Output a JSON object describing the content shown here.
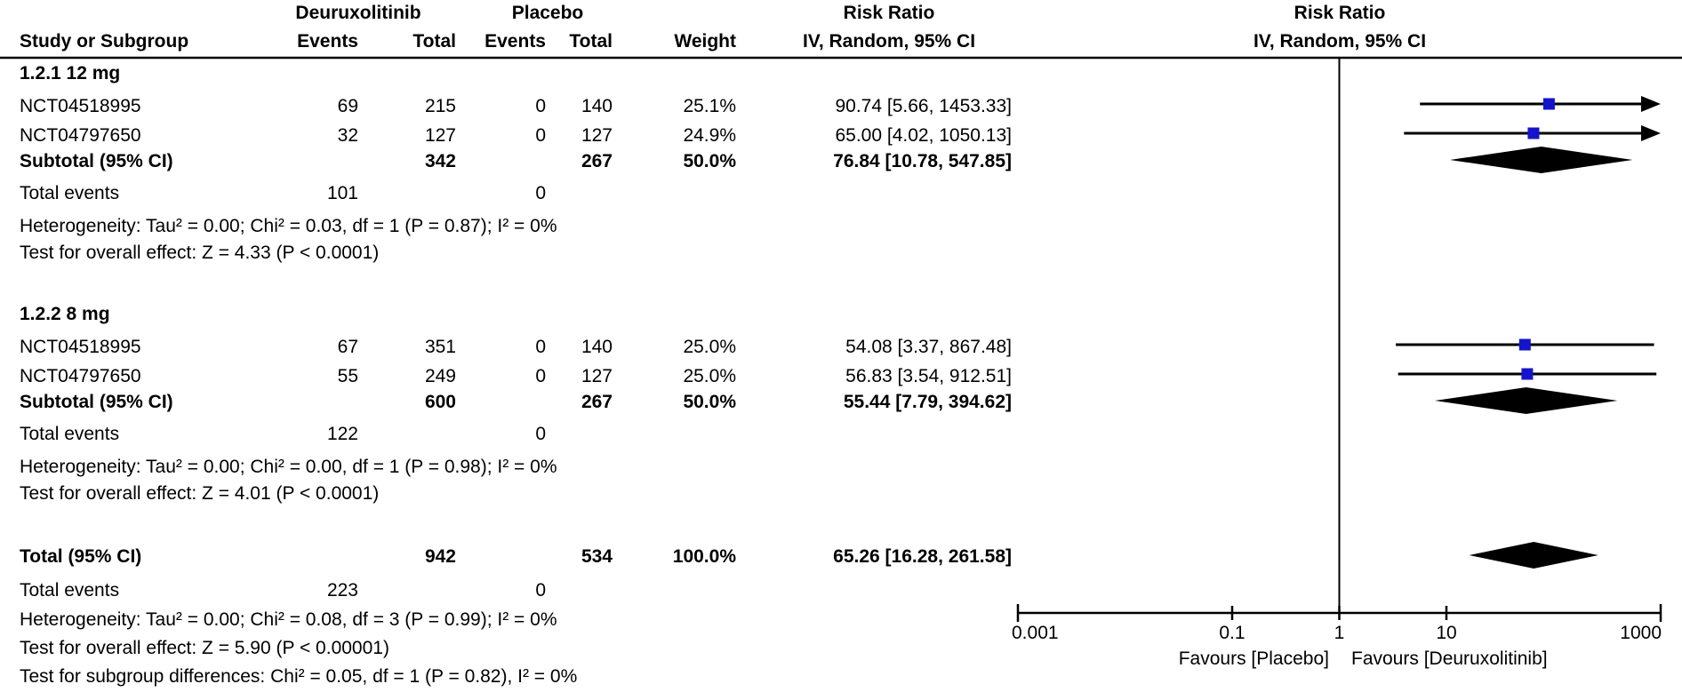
{
  "title_headers": {
    "group1": "Deuruxolitinib",
    "group2": "Placebo",
    "study_col": "Study or Subgroup",
    "events_col": "Events",
    "total_col": "Total",
    "weight_col": "Weight",
    "effect_col_line1": "Risk Ratio",
    "effect_col_line2": "IV, Random, 95% CI",
    "plot_col_line1": "Risk Ratio",
    "plot_col_line2": "IV, Random, 95% CI"
  },
  "colors": {
    "marker_square": "#1414CC",
    "marker_diamond": "#000000",
    "line": "#000000",
    "text": "#000000",
    "background": "#FFFFFF"
  },
  "chart_data": {
    "type": "forest",
    "effect_measure": "Risk Ratio",
    "model": "IV, Random, 95% CI",
    "axis": {
      "scale": "log",
      "min": 0.001,
      "max": 1000,
      "null_value": 1,
      "ticks": [
        0.001,
        0.1,
        1,
        10,
        1000
      ],
      "tick_labels": [
        "0.001",
        "0.1",
        "1",
        "10",
        "1000"
      ],
      "favours_left": "Favours [Placebo]",
      "favours_right": "Favours [Deuruxolitinib]"
    },
    "subgroups": [
      {
        "title": "1.2.1 12 mg",
        "studies": [
          {
            "study": "NCT04518995",
            "events1": "69",
            "total1": "215",
            "events2": "0",
            "total2": "140",
            "weight": "25.1%",
            "effect_text": "90.74 [5.66, 1453.33]",
            "est": 90.74,
            "ci_low": 5.66,
            "ci_high": 1453.33
          },
          {
            "study": "NCT04797650",
            "events1": "32",
            "total1": "127",
            "events2": "0",
            "total2": "127",
            "weight": "24.9%",
            "effect_text": "65.00 [4.02, 1050.13]",
            "est": 65.0,
            "ci_low": 4.02,
            "ci_high": 1050.13
          }
        ],
        "subtotal": {
          "label": "Subtotal (95% CI)",
          "total1": "342",
          "total2": "267",
          "weight": "50.0%",
          "effect_text": "76.84 [10.78, 547.85]",
          "est": 76.84,
          "ci_low": 10.78,
          "ci_high": 547.85
        },
        "total_events": {
          "label": "Total events",
          "events1": "101",
          "events2": "0"
        },
        "heterogeneity": "Heterogeneity: Tau² = 0.00; Chi² = 0.03, df = 1 (P = 0.87); I² = 0%",
        "overall_effect": "Test for overall effect: Z = 4.33 (P < 0.0001)"
      },
      {
        "title": "1.2.2 8 mg",
        "studies": [
          {
            "study": "NCT04518995",
            "events1": "67",
            "total1": "351",
            "events2": "0",
            "total2": "140",
            "weight": "25.0%",
            "effect_text": "54.08 [3.37, 867.48]",
            "est": 54.08,
            "ci_low": 3.37,
            "ci_high": 867.48
          },
          {
            "study": "NCT04797650",
            "events1": "55",
            "total1": "249",
            "events2": "0",
            "total2": "127",
            "weight": "25.0%",
            "effect_text": "56.83 [3.54, 912.51]",
            "est": 56.83,
            "ci_low": 3.54,
            "ci_high": 912.51
          }
        ],
        "subtotal": {
          "label": "Subtotal (95% CI)",
          "total1": "600",
          "total2": "267",
          "weight": "50.0%",
          "effect_text": "55.44 [7.79, 394.62]",
          "est": 55.44,
          "ci_low": 7.79,
          "ci_high": 394.62
        },
        "total_events": {
          "label": "Total events",
          "events1": "122",
          "events2": "0"
        },
        "heterogeneity": "Heterogeneity: Tau² = 0.00; Chi² = 0.00, df = 1 (P = 0.98); I² = 0%",
        "overall_effect": "Test for overall effect: Z = 4.01 (P < 0.0001)"
      }
    ],
    "total": {
      "label": "Total (95% CI)",
      "total1": "942",
      "total2": "534",
      "weight": "100.0%",
      "effect_text": "65.26 [16.28, 261.58]",
      "est": 65.26,
      "ci_low": 16.28,
      "ci_high": 261.58
    },
    "total_events": {
      "label": "Total events",
      "events1": "223",
      "events2": "0"
    },
    "footer": [
      "Heterogeneity: Tau² = 0.00; Chi² = 0.08, df = 3 (P = 0.99); I² = 0%",
      "Test for overall effect: Z = 5.90 (P < 0.00001)",
      "Test for subgroup differences: Chi² = 0.05, df = 1 (P = 0.82), I² = 0%"
    ]
  }
}
